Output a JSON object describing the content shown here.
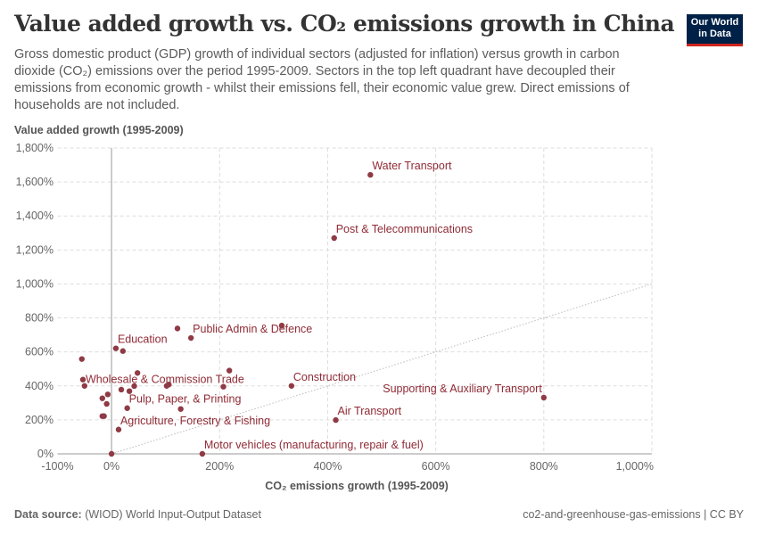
{
  "header": {
    "title": "Value added growth vs. CO₂ emissions growth in China",
    "subtitle": "Gross domestic product (GDP) growth of individual sectors (adjusted for inflation) versus growth in carbon dioxide (CO₂) emissions over the period 1995-2009. Sectors in the top left quadrant have decoupled their emissions from economic growth - whilst their emissions fell, their economic value grew. Direct emissions of households are not included.",
    "logo": "Our World in Data"
  },
  "footer": {
    "source_label": "Data source:",
    "source": "(WIOD) World Input-Output Dataset",
    "license": "co2-and-greenhouse-gas-emissions | CC BY"
  },
  "colors": {
    "point": "#8f3a44",
    "label": "#8f2a35",
    "logo_bg": "#002147",
    "logo_accent": "#ce261e"
  },
  "chart_data": {
    "type": "scatter",
    "xlabel": "CO₂ emissions growth (1995-2009)",
    "ylabel": "Value added growth (1995-2009)",
    "xlim": [
      -100,
      1000
    ],
    "ylim": [
      0,
      1800
    ],
    "xticks": [
      -100,
      0,
      200,
      400,
      600,
      800,
      1000
    ],
    "xtick_labels": [
      "-100%",
      "0%",
      "200%",
      "400%",
      "600%",
      "800%",
      "1,000%"
    ],
    "yticks": [
      0,
      200,
      400,
      600,
      800,
      1000,
      1200,
      1400,
      1600,
      1800
    ],
    "ytick_labels": [
      "0%",
      "200%",
      "400%",
      "600%",
      "800%",
      "1,000%",
      "1,200%",
      "1,400%",
      "1,600%",
      "1,800%"
    ],
    "grid": true,
    "reference_line": "y = x (dotted)",
    "points": [
      {
        "x": 479,
        "y": 1642,
        "label": "Water Transport"
      },
      {
        "x": 412,
        "y": 1270,
        "label": "Post & Telecommunications"
      },
      {
        "x": 147,
        "y": 682,
        "label": "Public Admin & Defence"
      },
      {
        "x": 8,
        "y": 621,
        "label": "Education"
      },
      {
        "x": -53,
        "y": 437,
        "label": "Wholesale & Commission Trade"
      },
      {
        "x": 333,
        "y": 400,
        "label": "Construction"
      },
      {
        "x": 29,
        "y": 269,
        "label": "Pulp, Paper, & Printing"
      },
      {
        "x": 13,
        "y": 143,
        "label": "Agriculture, Forestry & Fishing"
      },
      {
        "x": 168,
        "y": 0,
        "label": "Motor vehicles (manufacturing, repair & fuel)"
      },
      {
        "x": 800,
        "y": 331,
        "label": "Supporting & Auxiliary Transport"
      },
      {
        "x": 415,
        "y": 199,
        "label": "Air Transport"
      },
      {
        "x": 122,
        "y": 738
      },
      {
        "x": 315,
        "y": 755
      },
      {
        "x": 21,
        "y": 605
      },
      {
        "x": -55,
        "y": 558
      },
      {
        "x": 218,
        "y": 490
      },
      {
        "x": 48,
        "y": 476
      },
      {
        "x": -50,
        "y": 400
      },
      {
        "x": 102,
        "y": 400
      },
      {
        "x": 106,
        "y": 408
      },
      {
        "x": 42,
        "y": 399
      },
      {
        "x": 207,
        "y": 395
      },
      {
        "x": 18,
        "y": 378
      },
      {
        "x": 33,
        "y": 369
      },
      {
        "x": -7,
        "y": 350
      },
      {
        "x": -17,
        "y": 327
      },
      {
        "x": -9,
        "y": 294
      },
      {
        "x": 128,
        "y": 264
      },
      {
        "x": -17,
        "y": 222
      },
      {
        "x": -14,
        "y": 222
      },
      {
        "x": 0,
        "y": 0
      }
    ]
  }
}
